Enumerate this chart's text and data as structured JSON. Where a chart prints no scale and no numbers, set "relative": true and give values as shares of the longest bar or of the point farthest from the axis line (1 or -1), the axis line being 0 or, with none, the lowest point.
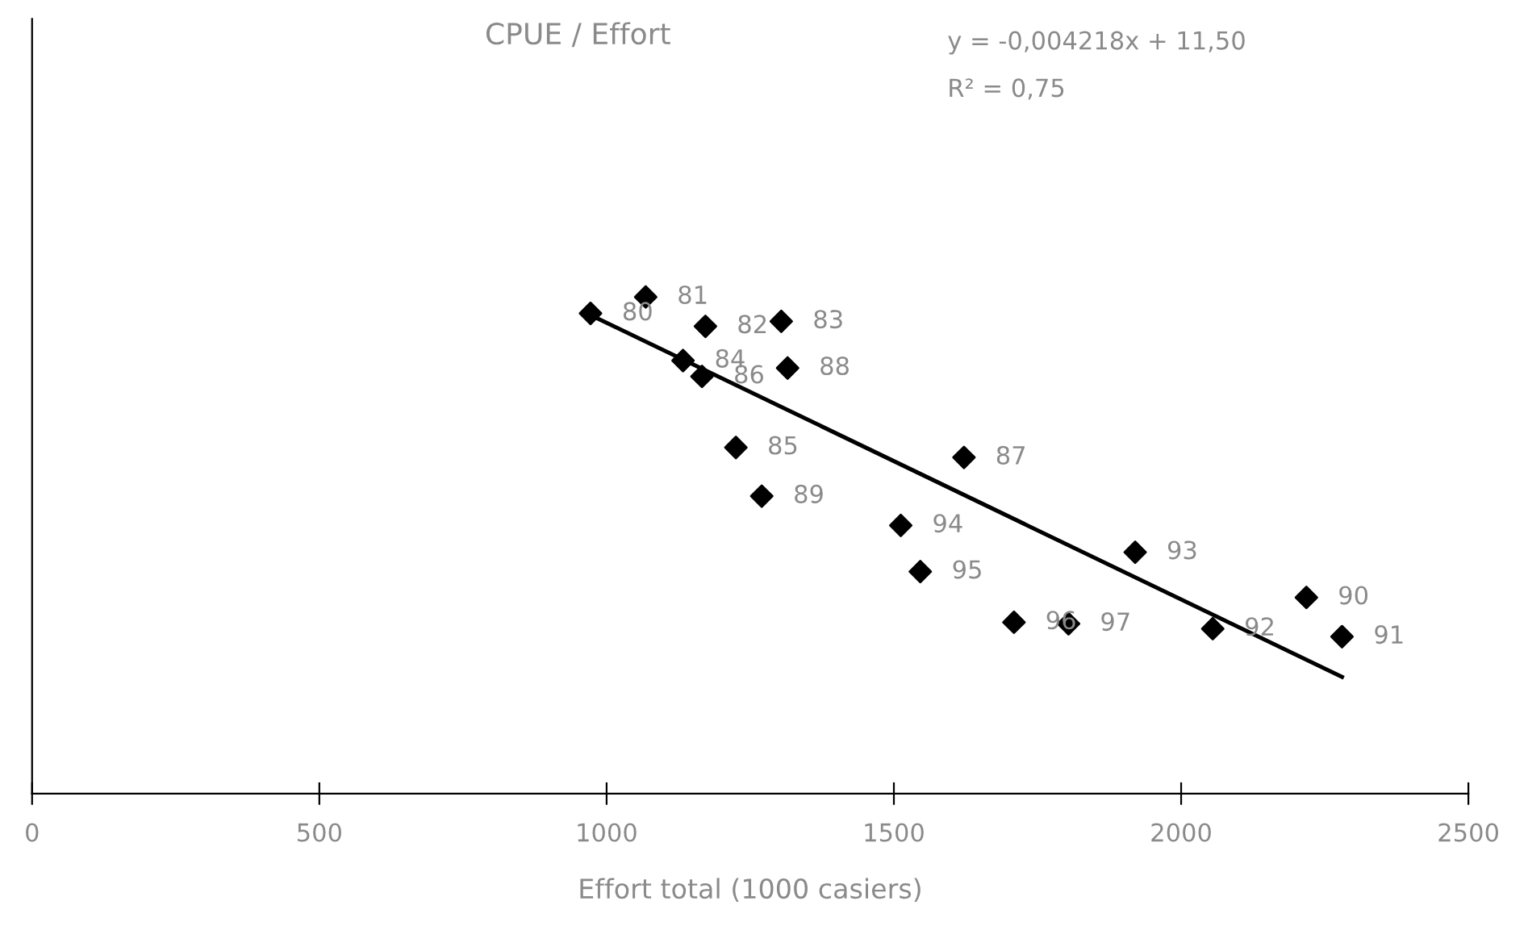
{
  "chart_data": {
    "type": "scatter",
    "title": "CPUE / Effort",
    "xlabel": "Effort total (1000 casiers)",
    "relative": true,
    "marker": "diamond",
    "grid": false,
    "legend": false,
    "xlim": [
      0,
      2500
    ],
    "xticks": [
      0,
      500,
      1000,
      1500,
      2000,
      2500
    ],
    "series": [
      {
        "color": "#000000",
        "x": [
          972,
          1068,
          1172,
          1304,
          1133,
          1166,
          1315,
          1225,
          1270,
          1622,
          1512,
          1546,
          1709,
          1804,
          1920,
          2055,
          2218,
          2280
        ],
        "values": [
          0.967,
          1,
          0.941,
          0.951,
          0.872,
          0.84,
          0.857,
          0.697,
          0.599,
          0.677,
          0.54,
          0.447,
          0.345,
          0.342,
          0.486,
          0.332,
          0.395,
          0.316
        ]
      },
      {
        "type": "line",
        "marker": "none",
        "color": "#000000",
        "x": [
          966,
          2280
        ],
        "values": [
          0.967,
          0.235
        ]
      }
    ],
    "annotations": [
      {
        "text": "80",
        "x": 972,
        "y": 0.967
      },
      {
        "text": "81",
        "x": 1068,
        "y": 1
      },
      {
        "text": "82",
        "x": 1172,
        "y": 0.941
      },
      {
        "text": "83",
        "x": 1304,
        "y": 0.951
      },
      {
        "text": "84",
        "x": 1133,
        "y": 0.872
      },
      {
        "text": "86",
        "x": 1166,
        "y": 0.84
      },
      {
        "text": "88",
        "x": 1315,
        "y": 0.857
      },
      {
        "text": "85",
        "x": 1225,
        "y": 0.697
      },
      {
        "text": "89",
        "x": 1270,
        "y": 0.599
      },
      {
        "text": "87",
        "x": 1622,
        "y": 0.677
      },
      {
        "text": "94",
        "x": 1512,
        "y": 0.54
      },
      {
        "text": "95",
        "x": 1546,
        "y": 0.447
      },
      {
        "text": "96",
        "x": 1709,
        "y": 0.345
      },
      {
        "text": "97",
        "x": 1804,
        "y": 0.342
      },
      {
        "text": "93",
        "x": 1920,
        "y": 0.486
      },
      {
        "text": "92",
        "x": 2055,
        "y": 0.332
      },
      {
        "text": "90",
        "x": 2218,
        "y": 0.395
      },
      {
        "text": "91",
        "x": 2280,
        "y": 0.316
      },
      "y = -0,004218x + 11,50",
      "R² = 0,75"
    ]
  }
}
